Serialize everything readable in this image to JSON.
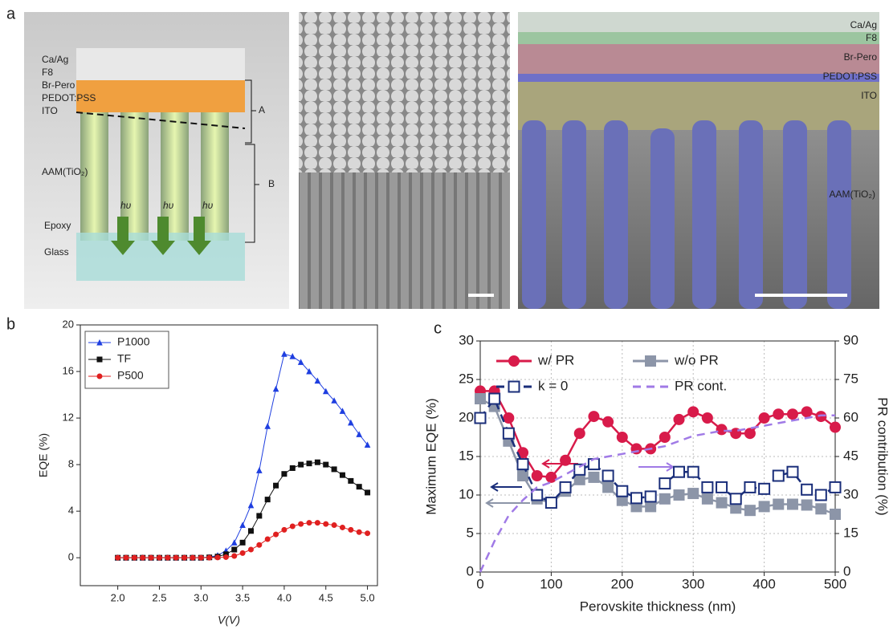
{
  "panel_labels": [
    "a",
    "b",
    "c"
  ],
  "panel_a": {
    "schematic_labels": [
      "Ca/Ag",
      "F8",
      "Br-Pero",
      "PEDOT:PSS",
      "ITO",
      "AAM(TiO₂)",
      "Epoxy",
      "Glass",
      "A",
      "B",
      "hυ",
      "hυ",
      "hυ"
    ],
    "sem_labels": [
      "Ca/Ag",
      "F8",
      "Br-Pero",
      "PEDOT:PSS",
      "ITO",
      "AAM(TiO₂)"
    ]
  },
  "chart_data": [
    {
      "type": "line",
      "xlabel": "V(V)",
      "ylabel": "EQE (%)",
      "x": [
        2.0,
        2.1,
        2.2,
        2.3,
        2.4,
        2.5,
        2.6,
        2.7,
        2.8,
        2.9,
        3.0,
        3.1,
        3.2,
        3.3,
        3.4,
        3.5,
        3.6,
        3.7,
        3.8,
        3.9,
        4.0,
        4.1,
        4.2,
        4.3,
        4.4,
        4.5,
        4.6,
        4.7,
        4.8,
        4.9,
        5.0
      ],
      "xlim": [
        1.55,
        5.12
      ],
      "xticks": [
        {
          "value": 2,
          "label": "2.0"
        },
        2.5,
        {
          "value": 3,
          "label": "3.0"
        },
        3.5,
        {
          "value": 4,
          "label": "4.0"
        },
        4.5,
        {
          "value": 5,
          "label": "5.0"
        }
      ],
      "ylim": [
        -2.4,
        20
      ],
      "yticks": [
        0,
        4,
        8,
        12,
        16,
        20
      ],
      "grid": false,
      "legend": "upper left",
      "legend_columns": 1,
      "series": [
        {
          "name": "P1000",
          "color": "#1f3fe0",
          "marker": "triangle",
          "dash": false,
          "values": [
            0,
            0,
            0,
            0,
            0,
            0,
            0,
            0,
            0,
            0,
            0,
            0.05,
            0.2,
            0.6,
            1.3,
            2.8,
            4.5,
            7.5,
            11.3,
            14.5,
            17.5,
            17.3,
            16.8,
            16.0,
            15.2,
            14.3,
            13.5,
            12.6,
            11.6,
            10.6,
            9.7
          ]
        },
        {
          "name": "TF",
          "color": "#111111",
          "marker": "square",
          "dash": false,
          "values": [
            0,
            0,
            0,
            0,
            0,
            0,
            0,
            0,
            0,
            0,
            0,
            0.03,
            0.1,
            0.3,
            0.7,
            1.3,
            2.3,
            3.6,
            5.0,
            6.2,
            7.2,
            7.7,
            8.0,
            8.1,
            8.2,
            8.0,
            7.6,
            7.1,
            6.6,
            6.1,
            5.6
          ]
        },
        {
          "name": "P500",
          "color": "#e02020",
          "marker": "circle",
          "dash": false,
          "values": [
            0,
            0,
            0,
            0,
            0,
            0,
            0,
            0,
            0,
            0,
            0,
            0,
            0.02,
            0.05,
            0.15,
            0.4,
            0.7,
            1.1,
            1.6,
            2.0,
            2.4,
            2.7,
            2.9,
            3.0,
            3.0,
            2.9,
            2.8,
            2.6,
            2.4,
            2.2,
            2.1
          ]
        }
      ]
    },
    {
      "type": "line",
      "xlabel": "Perovskite thickness (nm)",
      "ylabel": "Maximum EQE (%)",
      "y2label": "PR contribution (%)",
      "x": [
        0,
        20,
        40,
        60,
        80,
        100,
        120,
        140,
        160,
        180,
        200,
        220,
        240,
        260,
        280,
        300,
        320,
        340,
        360,
        380,
        400,
        420,
        440,
        460,
        480,
        500
      ],
      "xlim": [
        0,
        500
      ],
      "xticks": [
        0,
        100,
        200,
        300,
        400,
        500
      ],
      "ylim": [
        0,
        30
      ],
      "yticks": [
        0,
        5,
        10,
        15,
        20,
        25,
        30
      ],
      "y2lim": [
        0,
        90
      ],
      "y2ticks": [
        0,
        15,
        30,
        45,
        60,
        75,
        90
      ],
      "grid": true,
      "legend": "upper left",
      "legend_columns": 2,
      "series": [
        {
          "name": "w/ PR",
          "color": "#d81b4a",
          "marker": "circle",
          "dash": false,
          "values": [
            23.5,
            23.5,
            20,
            15.5,
            12.5,
            12.3,
            14.5,
            18,
            20.2,
            19.5,
            17.5,
            16,
            16,
            17.5,
            19.8,
            20.8,
            20,
            18.5,
            18,
            18,
            20,
            20.5,
            20.5,
            20.8,
            20.2,
            18.8
          ]
        },
        {
          "name": "w/o PR",
          "color": "#8c95a8",
          "marker": "square",
          "dash": false,
          "values": [
            22.5,
            21.5,
            17,
            12.5,
            9.5,
            9,
            10.5,
            12,
            12.3,
            11,
            9.3,
            8.5,
            8.5,
            9.5,
            10,
            10.2,
            9.5,
            9,
            8.3,
            8,
            8.5,
            8.8,
            8.8,
            8.7,
            8.2,
            7.5
          ]
        },
        {
          "name": "k = 0",
          "color": "#1a2e7a",
          "marker": "open-square",
          "dash": true,
          "values": [
            20,
            22.5,
            18,
            14,
            10,
            9,
            11,
            13.3,
            14,
            12.5,
            10.5,
            9.6,
            9.8,
            11.5,
            13,
            13,
            11,
            11,
            9.5,
            11,
            10.8,
            12.5,
            13,
            10.7,
            10,
            11
          ]
        },
        {
          "name": "PR cont.",
          "color": "#a07ae6",
          "marker": "none",
          "dash": true,
          "axis": "y2",
          "values": [
            0,
            12,
            22,
            28,
            33,
            35,
            38,
            41,
            44,
            45,
            46,
            47,
            48,
            49,
            51,
            53,
            54,
            55,
            55,
            56,
            57,
            58,
            59,
            60,
            61,
            61
          ]
        }
      ]
    }
  ]
}
